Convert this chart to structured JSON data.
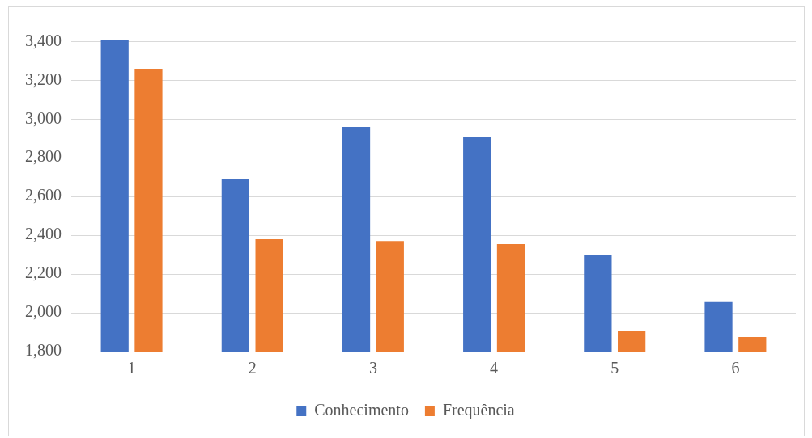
{
  "chart_data": {
    "type": "bar",
    "categories": [
      "1",
      "2",
      "3",
      "4",
      "5",
      "6"
    ],
    "series": [
      {
        "name": "Conhecimento",
        "color": "#4472c4",
        "values": [
          3410,
          2690,
          2960,
          2910,
          2300,
          2055
        ]
      },
      {
        "name": "Frequência",
        "color": "#ed7d31",
        "values": [
          3260,
          2380,
          2370,
          2355,
          1905,
          1875
        ]
      }
    ],
    "ylim": [
      1800,
      3410
    ],
    "yticks": [
      {
        "value": 1800,
        "label": "1,800"
      },
      {
        "value": 2000,
        "label": "2,000"
      },
      {
        "value": 2200,
        "label": "2,200"
      },
      {
        "value": 2400,
        "label": "2,400"
      },
      {
        "value": 2600,
        "label": "2,600"
      },
      {
        "value": 2800,
        "label": "2,800"
      },
      {
        "value": 3000,
        "label": "3,000"
      },
      {
        "value": 3200,
        "label": "3,200"
      },
      {
        "value": 3400,
        "label": "3,400"
      }
    ],
    "grid": "y",
    "legend": "bottom"
  }
}
